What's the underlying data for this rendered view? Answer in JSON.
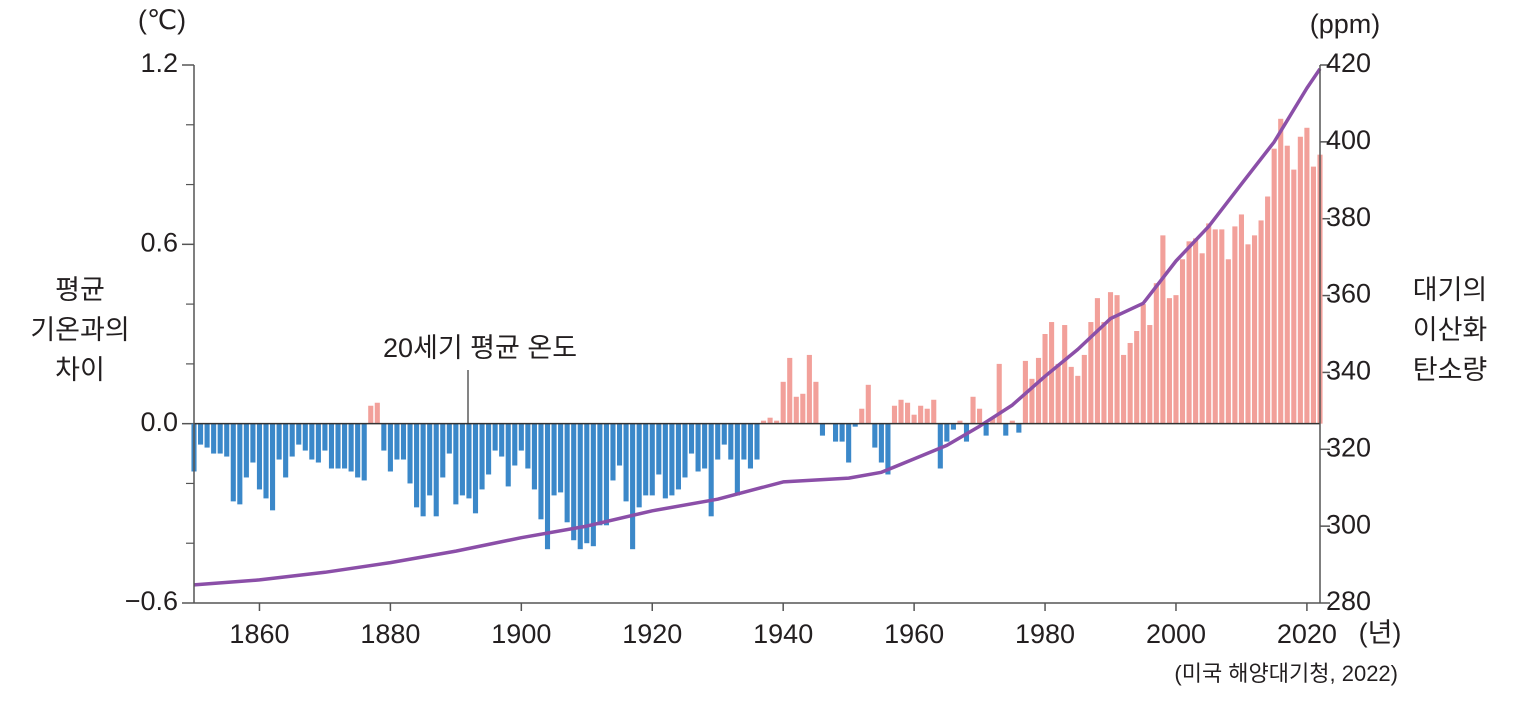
{
  "chart_data": {
    "type": "combo",
    "xlim": [
      1850,
      2022
    ],
    "xticks": [
      1860,
      1880,
      1900,
      1920,
      1940,
      1960,
      1980,
      2000,
      2020
    ],
    "xunit": "(년)",
    "ylim": [
      -0.6,
      1.2
    ],
    "yticks": [
      {
        "value": -0.6,
        "label": "−0.6"
      },
      {
        "value": 0,
        "label": "0.0"
      },
      0.6,
      1.2
    ],
    "yminorticks": [
      -0.4,
      -0.2,
      0.2,
      0.4,
      0.8,
      1.0
    ],
    "yunit": "(℃)",
    "ylabel_lines": [
      "평균",
      "기온과의",
      "차이"
    ],
    "y2lim": [
      280,
      420
    ],
    "y2ticks": [
      280,
      300,
      320,
      340,
      360,
      380,
      400,
      420
    ],
    "y2unit": "(ppm)",
    "y2label_lines": [
      "대기의",
      "이산화",
      "탄소량"
    ],
    "annotation": "20세기 평균 온도",
    "source": "(미국 해양대기청, 2022)",
    "series": [
      {
        "type": "bar",
        "positive_color": "#f2a09a",
        "negative_color": "#3b88c9",
        "x": [
          1850,
          1851,
          1852,
          1853,
          1854,
          1855,
          1856,
          1857,
          1858,
          1859,
          1860,
          1861,
          1862,
          1863,
          1864,
          1865,
          1866,
          1867,
          1868,
          1869,
          1870,
          1871,
          1872,
          1873,
          1874,
          1875,
          1876,
          1877,
          1878,
          1879,
          1880,
          1881,
          1882,
          1883,
          1884,
          1885,
          1886,
          1887,
          1888,
          1889,
          1890,
          1891,
          1892,
          1893,
          1894,
          1895,
          1896,
          1897,
          1898,
          1899,
          1900,
          1901,
          1902,
          1903,
          1904,
          1905,
          1906,
          1907,
          1908,
          1909,
          1910,
          1911,
          1912,
          1913,
          1914,
          1915,
          1916,
          1917,
          1918,
          1919,
          1920,
          1921,
          1922,
          1923,
          1924,
          1925,
          1926,
          1927,
          1928,
          1929,
          1930,
          1931,
          1932,
          1933,
          1934,
          1935,
          1936,
          1937,
          1938,
          1939,
          1940,
          1941,
          1942,
          1943,
          1944,
          1945,
          1946,
          1947,
          1948,
          1949,
          1950,
          1951,
          1952,
          1953,
          1954,
          1955,
          1956,
          1957,
          1958,
          1959,
          1960,
          1961,
          1962,
          1963,
          1964,
          1965,
          1966,
          1967,
          1968,
          1969,
          1970,
          1971,
          1972,
          1973,
          1974,
          1975,
          1976,
          1977,
          1978,
          1979,
          1980,
          1981,
          1982,
          1983,
          1984,
          1985,
          1986,
          1987,
          1988,
          1989,
          1990,
          1991,
          1992,
          1993,
          1994,
          1995,
          1996,
          1997,
          1998,
          1999,
          2000,
          2001,
          2002,
          2003,
          2004,
          2005,
          2006,
          2007,
          2008,
          2009,
          2010,
          2011,
          2012,
          2013,
          2014,
          2015,
          2016,
          2017,
          2018,
          2019,
          2020,
          2021,
          2022
        ],
        "values": [
          -0.16,
          -0.07,
          -0.08,
          -0.1,
          -0.1,
          -0.11,
          -0.26,
          -0.27,
          -0.18,
          -0.13,
          -0.22,
          -0.25,
          -0.29,
          -0.12,
          -0.18,
          -0.11,
          -0.07,
          -0.09,
          -0.12,
          -0.13,
          -0.09,
          -0.15,
          -0.15,
          -0.15,
          -0.16,
          -0.18,
          -0.19,
          0.06,
          0.07,
          -0.09,
          -0.16,
          -0.12,
          -0.12,
          -0.2,
          -0.28,
          -0.31,
          -0.24,
          -0.31,
          -0.18,
          -0.1,
          -0.27,
          -0.24,
          -0.25,
          -0.3,
          -0.22,
          -0.17,
          -0.09,
          -0.11,
          -0.21,
          -0.14,
          -0.09,
          -0.15,
          -0.22,
          -0.32,
          -0.42,
          -0.24,
          -0.23,
          -0.33,
          -0.39,
          -0.42,
          -0.4,
          -0.41,
          -0.34,
          -0.34,
          -0.19,
          -0.14,
          -0.26,
          -0.42,
          -0.28,
          -0.24,
          -0.24,
          -0.17,
          -0.25,
          -0.24,
          -0.22,
          -0.18,
          -0.1,
          -0.16,
          -0.15,
          -0.31,
          -0.12,
          -0.07,
          -0.12,
          -0.24,
          -0.12,
          -0.15,
          -0.12,
          0.01,
          0.02,
          0.01,
          0.14,
          0.22,
          0.09,
          0.1,
          0.23,
          0.14,
          -0.04,
          0,
          -0.06,
          -0.06,
          -0.13,
          -0.01,
          0.05,
          0.13,
          -0.08,
          -0.13,
          -0.17,
          0.06,
          0.08,
          0.07,
          0.03,
          0.06,
          0.05,
          0.08,
          -0.15,
          -0.06,
          -0.02,
          0.01,
          -0.06,
          0.09,
          0.05,
          -0.04,
          0.02,
          0.2,
          -0.04,
          0.01,
          -0.03,
          0.21,
          0.15,
          0.22,
          0.3,
          0.34,
          0.2,
          0.33,
          0.19,
          0.16,
          0.23,
          0.34,
          0.42,
          0.34,
          0.44,
          0.43,
          0.23,
          0.27,
          0.31,
          0.4,
          0.33,
          0.47,
          0.63,
          0.42,
          0.43,
          0.55,
          0.61,
          0.62,
          0.57,
          0.67,
          0.65,
          0.65,
          0.55,
          0.66,
          0.7,
          0.6,
          0.63,
          0.68,
          0.76,
          0.92,
          1.02,
          0.93,
          0.85,
          0.96,
          0.99,
          0.86,
          0.9
        ]
      },
      {
        "type": "line",
        "axis": "y2",
        "color": "#8b4fa8",
        "x": [
          1850,
          1860,
          1870,
          1880,
          1890,
          1900,
          1910,
          1920,
          1930,
          1940,
          1945,
          1950,
          1955,
          1960,
          1965,
          1970,
          1975,
          1980,
          1985,
          1990,
          1995,
          2000,
          2005,
          2010,
          2015,
          2020,
          2022
        ],
        "values": [
          284.7,
          286,
          288,
          290.5,
          293.5,
          297,
          300,
          304,
          307,
          311.5,
          312,
          312.5,
          314,
          317.5,
          321,
          326,
          331.5,
          339,
          346,
          354,
          358,
          369,
          378,
          389,
          400,
          414,
          419
        ]
      }
    ]
  }
}
